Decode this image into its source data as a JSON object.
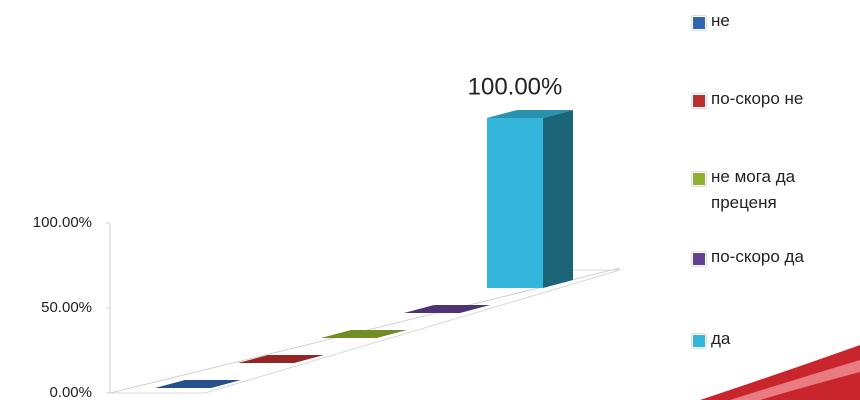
{
  "chart_data": {
    "type": "bar3d",
    "series": [
      {
        "name": "не",
        "color": "#2f65ad",
        "values": [
          0
        ]
      },
      {
        "name": "по-скоро не",
        "color": "#b8302d",
        "values": [
          0
        ]
      },
      {
        "name": "не мога да преценя",
        "color": "#8fb030",
        "values": [
          0
        ]
      },
      {
        "name": "по-скоро да",
        "color": "#60408f",
        "values": [
          0
        ]
      },
      {
        "name": "да",
        "color": "#33b6da",
        "values": [
          100
        ],
        "value_labels": [
          "100.00%"
        ]
      }
    ],
    "ylim": [
      0,
      100
    ],
    "yticks": [
      {
        "value": 0,
        "label": "0.00%"
      },
      {
        "value": 50,
        "label": "50.00%"
      },
      {
        "value": 100,
        "label": "100.00%"
      }
    ],
    "legend": "right"
  }
}
